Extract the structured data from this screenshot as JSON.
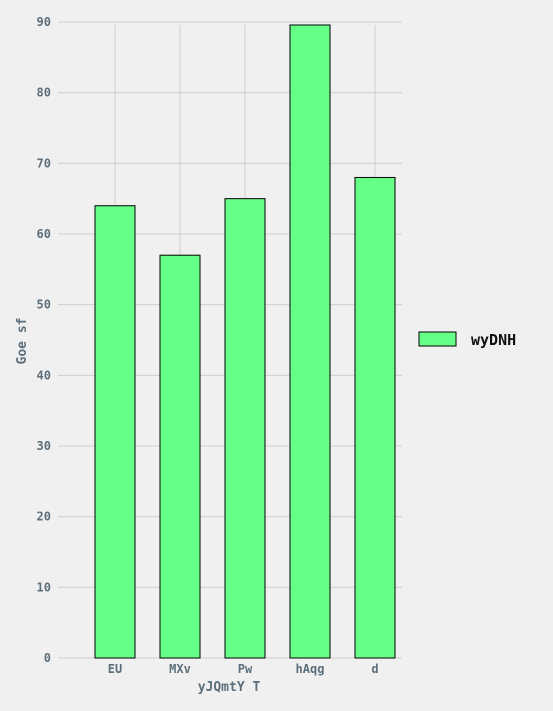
{
  "chart_data": {
    "type": "bar",
    "categories": [
      "EU",
      "MXv",
      "Pw",
      "hAqg",
      "d"
    ],
    "series": [
      {
        "name": "wyDNH",
        "values": [
          64,
          57,
          65,
          90,
          68
        ],
        "color": "#66ff88"
      }
    ],
    "title": "",
    "xlabel": "yJQmtY T",
    "ylabel": "Goe sf",
    "ylim": [
      0,
      90
    ],
    "yticks": [
      0,
      10,
      20,
      30,
      40,
      50,
      60,
      70,
      80,
      90
    ],
    "grid": true,
    "legend_position": "right",
    "background_color": "#f0f0f0",
    "grid_color": "#cfcfcf",
    "text_color": "#5c6f7b"
  }
}
